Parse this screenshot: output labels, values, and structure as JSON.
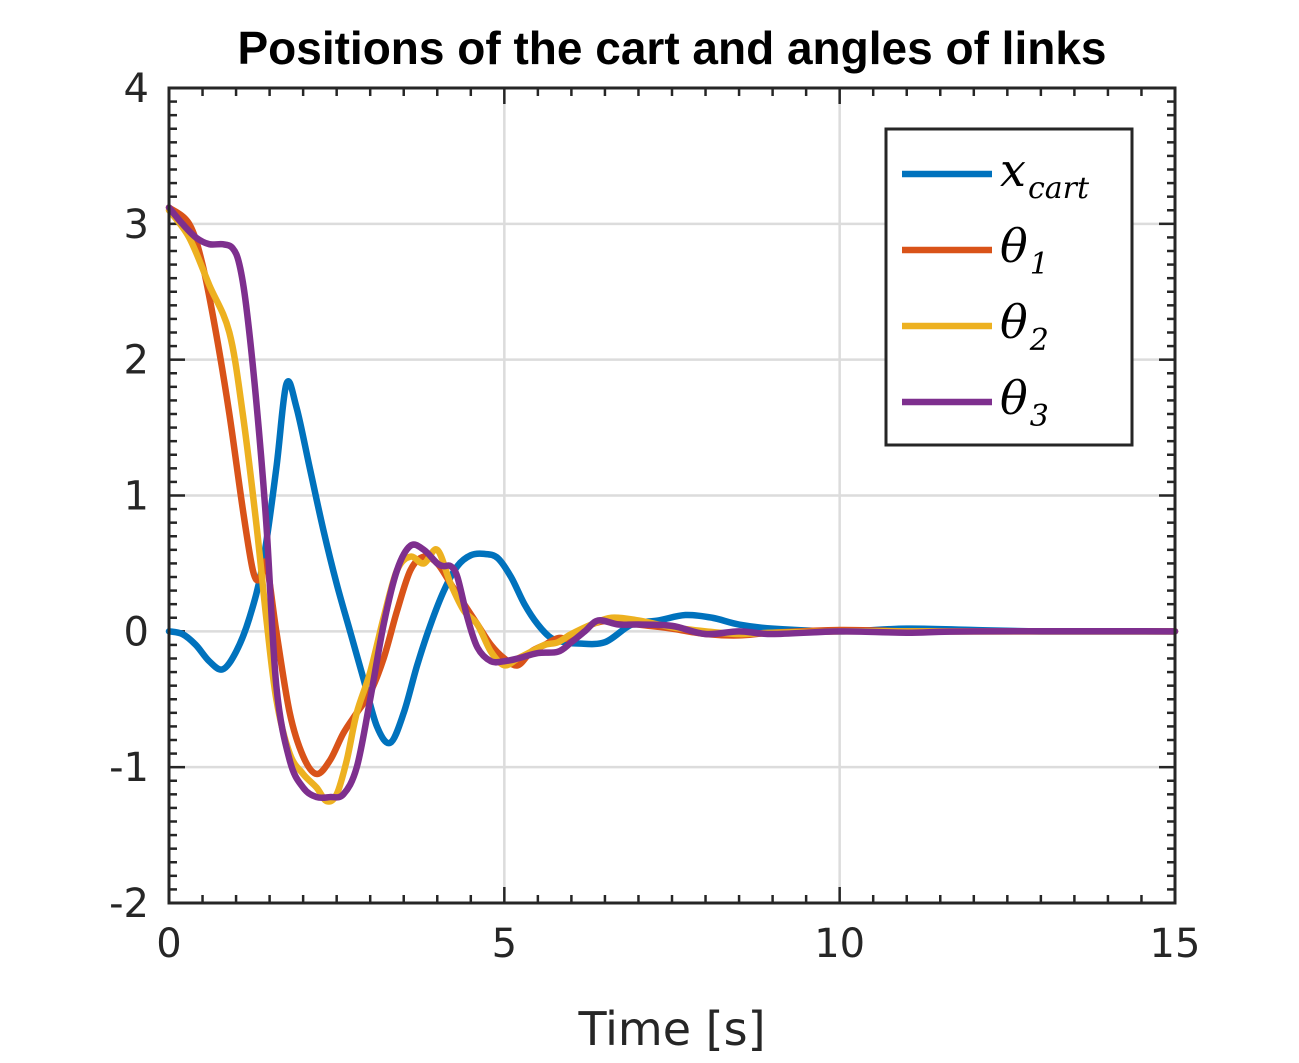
{
  "chart_data": {
    "type": "line",
    "title": "Positions of the cart and angles of links",
    "xlabel": "Time [s]",
    "ylabel": "",
    "xlim": [
      0,
      15
    ],
    "ylim": [
      -2,
      4
    ],
    "xticks": [
      0,
      5,
      10,
      15
    ],
    "xtick_labels": [
      "0",
      "5",
      "10",
      "15"
    ],
    "yticks": [
      -2,
      -1,
      0,
      1,
      2,
      3,
      4
    ],
    "ytick_labels": [
      "-2",
      "-1",
      "0",
      "1",
      "2",
      "3",
      "4"
    ],
    "grid": true,
    "legend_position": "top-right",
    "series": [
      {
        "name": "x",
        "subscript": "cart",
        "color": "#0072BD",
        "x": [
          0,
          0.2,
          0.4,
          0.6,
          0.8,
          1.0,
          1.2,
          1.4,
          1.6,
          1.75,
          1.9,
          2.1,
          2.3,
          2.5,
          2.7,
          2.9,
          3.1,
          3.3,
          3.5,
          3.7,
          3.9,
          4.1,
          4.3,
          4.5,
          4.7,
          4.9,
          5.1,
          5.3,
          5.5,
          5.7,
          5.9,
          6.1,
          6.5,
          6.9,
          7.3,
          7.7,
          8.1,
          8.5,
          9.0,
          10.0,
          11.0,
          12.0,
          13.0,
          15.0
        ],
        "y": [
          0.0,
          -0.02,
          -0.1,
          -0.22,
          -0.28,
          -0.15,
          0.1,
          0.5,
          1.2,
          1.82,
          1.65,
          1.2,
          0.75,
          0.35,
          0.0,
          -0.35,
          -0.7,
          -0.82,
          -0.6,
          -0.25,
          0.05,
          0.3,
          0.48,
          0.56,
          0.57,
          0.54,
          0.4,
          0.2,
          0.05,
          -0.05,
          -0.08,
          -0.09,
          -0.08,
          0.05,
          0.08,
          0.12,
          0.1,
          0.05,
          0.02,
          0.0,
          0.02,
          0.01,
          0.0,
          0.0
        ]
      },
      {
        "name": "θ",
        "subscript": "1",
        "color": "#D95319",
        "x": [
          0,
          0.3,
          0.5,
          0.7,
          0.9,
          1.1,
          1.25,
          1.35,
          1.45,
          1.6,
          1.8,
          2.0,
          2.2,
          2.4,
          2.6,
          2.8,
          3.0,
          3.2,
          3.4,
          3.6,
          3.8,
          4.0,
          4.2,
          4.4,
          4.6,
          4.8,
          5.0,
          5.2,
          5.4,
          5.6,
          5.8,
          6.0,
          6.3,
          6.6,
          7.0,
          7.5,
          8.0,
          8.5,
          9.0,
          10.0,
          11.0,
          12.0,
          15.0
        ],
        "y": [
          3.12,
          3.0,
          2.7,
          2.2,
          1.6,
          0.9,
          0.45,
          0.38,
          0.5,
          0.0,
          -0.6,
          -0.92,
          -1.05,
          -0.95,
          -0.75,
          -0.6,
          -0.45,
          -0.2,
          0.15,
          0.45,
          0.55,
          0.5,
          0.35,
          0.2,
          0.05,
          -0.1,
          -0.2,
          -0.25,
          -0.15,
          -0.1,
          -0.05,
          -0.05,
          0.05,
          0.08,
          0.05,
          0.02,
          -0.02,
          -0.03,
          -0.01,
          0.01,
          0.0,
          0.0,
          0.0
        ]
      },
      {
        "name": "θ",
        "subscript": "2",
        "color": "#EDB120",
        "x": [
          0,
          0.3,
          0.6,
          0.9,
          1.1,
          1.3,
          1.45,
          1.6,
          1.8,
          2.0,
          2.2,
          2.35,
          2.5,
          2.65,
          2.8,
          3.0,
          3.2,
          3.4,
          3.6,
          3.8,
          4.0,
          4.2,
          4.4,
          4.6,
          4.8,
          5.0,
          5.2,
          5.4,
          5.6,
          5.8,
          6.0,
          6.3,
          6.6,
          7.0,
          7.5,
          8.0,
          8.5,
          9.0,
          10.0,
          11.0,
          12.0,
          15.0
        ],
        "y": [
          3.1,
          2.9,
          2.55,
          2.2,
          1.6,
          0.8,
          0.1,
          -0.5,
          -0.9,
          -1.05,
          -1.15,
          -1.25,
          -1.2,
          -0.95,
          -0.6,
          -0.3,
          0.1,
          0.45,
          0.55,
          0.5,
          0.6,
          0.35,
          0.15,
          0.05,
          -0.15,
          -0.25,
          -0.2,
          -0.15,
          -0.1,
          -0.08,
          -0.02,
          0.05,
          0.1,
          0.08,
          0.03,
          0.0,
          -0.02,
          -0.01,
          0.0,
          0.0,
          0.0,
          0.0
        ]
      },
      {
        "name": "θ",
        "subscript": "3",
        "color": "#7E2F8E",
        "x": [
          0,
          0.2,
          0.4,
          0.6,
          0.8,
          0.95,
          1.05,
          1.15,
          1.3,
          1.45,
          1.6,
          1.8,
          2.0,
          2.2,
          2.4,
          2.6,
          2.8,
          3.0,
          3.2,
          3.4,
          3.6,
          3.8,
          4.0,
          4.1,
          4.2,
          4.3,
          4.45,
          4.6,
          4.8,
          5.0,
          5.2,
          5.5,
          5.8,
          6.0,
          6.2,
          6.4,
          6.7,
          7.0,
          7.5,
          8.0,
          8.5,
          9.0,
          10.0,
          11.0,
          12.0,
          15.0
        ],
        "y": [
          3.12,
          3.0,
          2.9,
          2.85,
          2.85,
          2.82,
          2.7,
          2.4,
          1.7,
          0.8,
          -0.4,
          -0.95,
          -1.15,
          -1.22,
          -1.22,
          -1.2,
          -1.0,
          -0.5,
          0.05,
          0.45,
          0.63,
          0.6,
          0.5,
          0.48,
          0.48,
          0.4,
          0.1,
          -0.12,
          -0.22,
          -0.22,
          -0.2,
          -0.16,
          -0.15,
          -0.08,
          0.0,
          0.08,
          0.05,
          0.05,
          0.04,
          -0.02,
          0.0,
          -0.02,
          0.0,
          -0.01,
          0.0,
          0.0
        ]
      }
    ]
  }
}
